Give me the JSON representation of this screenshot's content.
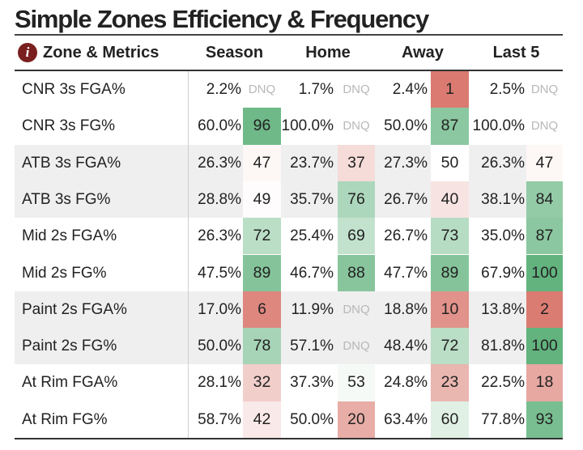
{
  "title": "Simple Zones Efficiency & Frequency",
  "header": {
    "info_icon": "i",
    "metric_label": "Zone & Metrics",
    "columns": [
      "Season",
      "Home",
      "Away",
      "Last 5"
    ]
  },
  "dnq_label": "DNQ",
  "rows": [
    {
      "label": "CNR 3s FGA%",
      "cells": [
        [
          "2.2%",
          "DNQ"
        ],
        [
          "1.7%",
          "DNQ"
        ],
        [
          "2.4%",
          "1"
        ],
        [
          "2.5%",
          "DNQ"
        ]
      ]
    },
    {
      "label": "CNR 3s FG%",
      "cells": [
        [
          "60.0%",
          "96"
        ],
        [
          "100.0%",
          "DNQ"
        ],
        [
          "50.0%",
          "87"
        ],
        [
          "100.0%",
          "DNQ"
        ]
      ]
    },
    {
      "label": "ATB 3s FGA%",
      "cells": [
        [
          "26.3%",
          "47"
        ],
        [
          "23.7%",
          "37"
        ],
        [
          "27.3%",
          "50"
        ],
        [
          "26.3%",
          "47"
        ]
      ]
    },
    {
      "label": "ATB 3s FG%",
      "cells": [
        [
          "28.8%",
          "49"
        ],
        [
          "35.7%",
          "76"
        ],
        [
          "26.7%",
          "40"
        ],
        [
          "38.1%",
          "84"
        ]
      ]
    },
    {
      "label": "Mid 2s FGA%",
      "cells": [
        [
          "26.3%",
          "72"
        ],
        [
          "25.4%",
          "69"
        ],
        [
          "26.7%",
          "73"
        ],
        [
          "35.0%",
          "87"
        ]
      ]
    },
    {
      "label": "Mid 2s FG%",
      "cells": [
        [
          "47.5%",
          "89"
        ],
        [
          "46.7%",
          "88"
        ],
        [
          "47.7%",
          "89"
        ],
        [
          "67.9%",
          "100"
        ]
      ]
    },
    {
      "label": "Paint 2s FGA%",
      "cells": [
        [
          "17.0%",
          "6"
        ],
        [
          "11.9%",
          "DNQ"
        ],
        [
          "18.8%",
          "10"
        ],
        [
          "13.8%",
          "2"
        ]
      ]
    },
    {
      "label": "Paint 2s FG%",
      "cells": [
        [
          "50.0%",
          "78"
        ],
        [
          "57.1%",
          "DNQ"
        ],
        [
          "48.4%",
          "72"
        ],
        [
          "81.8%",
          "100"
        ]
      ]
    },
    {
      "label": "At Rim FGA%",
      "cells": [
        [
          "28.1%",
          "32"
        ],
        [
          "37.3%",
          "53"
        ],
        [
          "24.8%",
          "23"
        ],
        [
          "22.5%",
          "18"
        ]
      ]
    },
    {
      "label": "At Rim FG%",
      "cells": [
        [
          "58.7%",
          "42"
        ],
        [
          "50.0%",
          "20"
        ],
        [
          "63.4%",
          "60"
        ],
        [
          "77.8%",
          "93"
        ]
      ]
    }
  ],
  "colors": {
    "low": "#d9776d",
    "mid": "#ffffff",
    "high": "#62b37e",
    "row_shade": "#efefef",
    "dnq_text": "#b8b8b8",
    "icon_bg": "#7a1f1f"
  }
}
